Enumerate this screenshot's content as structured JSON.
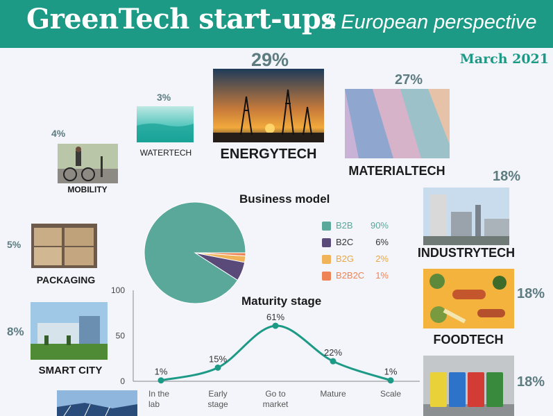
{
  "header": {
    "title": "GreenTech start-ups",
    "subtitle": "A European perspective",
    "date": "March 2021"
  },
  "sectors": {
    "watertech": {
      "pct": "3%",
      "label": "WATERTECH"
    },
    "energytech": {
      "pct": "29%",
      "label": "ENERGYTECH"
    },
    "materialtech": {
      "pct": "27%",
      "label": "MATERIALTECH"
    },
    "mobility": {
      "pct": "4%",
      "label": "MOBILITY"
    },
    "industrytech": {
      "pct": "18%",
      "label": "INDUSTRYTECH"
    },
    "packaging": {
      "pct": "5%",
      "label": "PACKAGING"
    },
    "foodtech": {
      "pct": "18%",
      "label": "FOODTECH"
    },
    "smartcity": {
      "pct": "8%",
      "label": "SMART CITY"
    },
    "waste": {
      "pct": "18%"
    }
  },
  "colors": {
    "brand": "#1d9a86",
    "b2b": "#5aa89a",
    "b2c": "#5a4a7a",
    "b2g": "#f0b35a",
    "b2b2c": "#ee8456"
  },
  "chart_data": [
    {
      "type": "pie",
      "title": "Business model",
      "categories": [
        "B2B",
        "B2C",
        "B2G",
        "B2B2C"
      ],
      "values": [
        90,
        6,
        2,
        1
      ],
      "value_labels": [
        "90%",
        "6%",
        "2%",
        "1%"
      ],
      "colors": [
        "#5aa89a",
        "#5a4a7a",
        "#f0b35a",
        "#ee8456"
      ],
      "legend": "right"
    },
    {
      "type": "line",
      "title": "Maturity stage",
      "categories": [
        "In the lab",
        "Early stage",
        "Go to market",
        "Mature",
        "Scale"
      ],
      "values": [
        1,
        15,
        61,
        22,
        1
      ],
      "value_labels": [
        "1%",
        "15%",
        "61%",
        "22%",
        "1%"
      ],
      "ylim": [
        0,
        100
      ],
      "yticks": [
        "0",
        "50",
        "100"
      ],
      "color": "#1d9a86",
      "grid": false
    }
  ]
}
